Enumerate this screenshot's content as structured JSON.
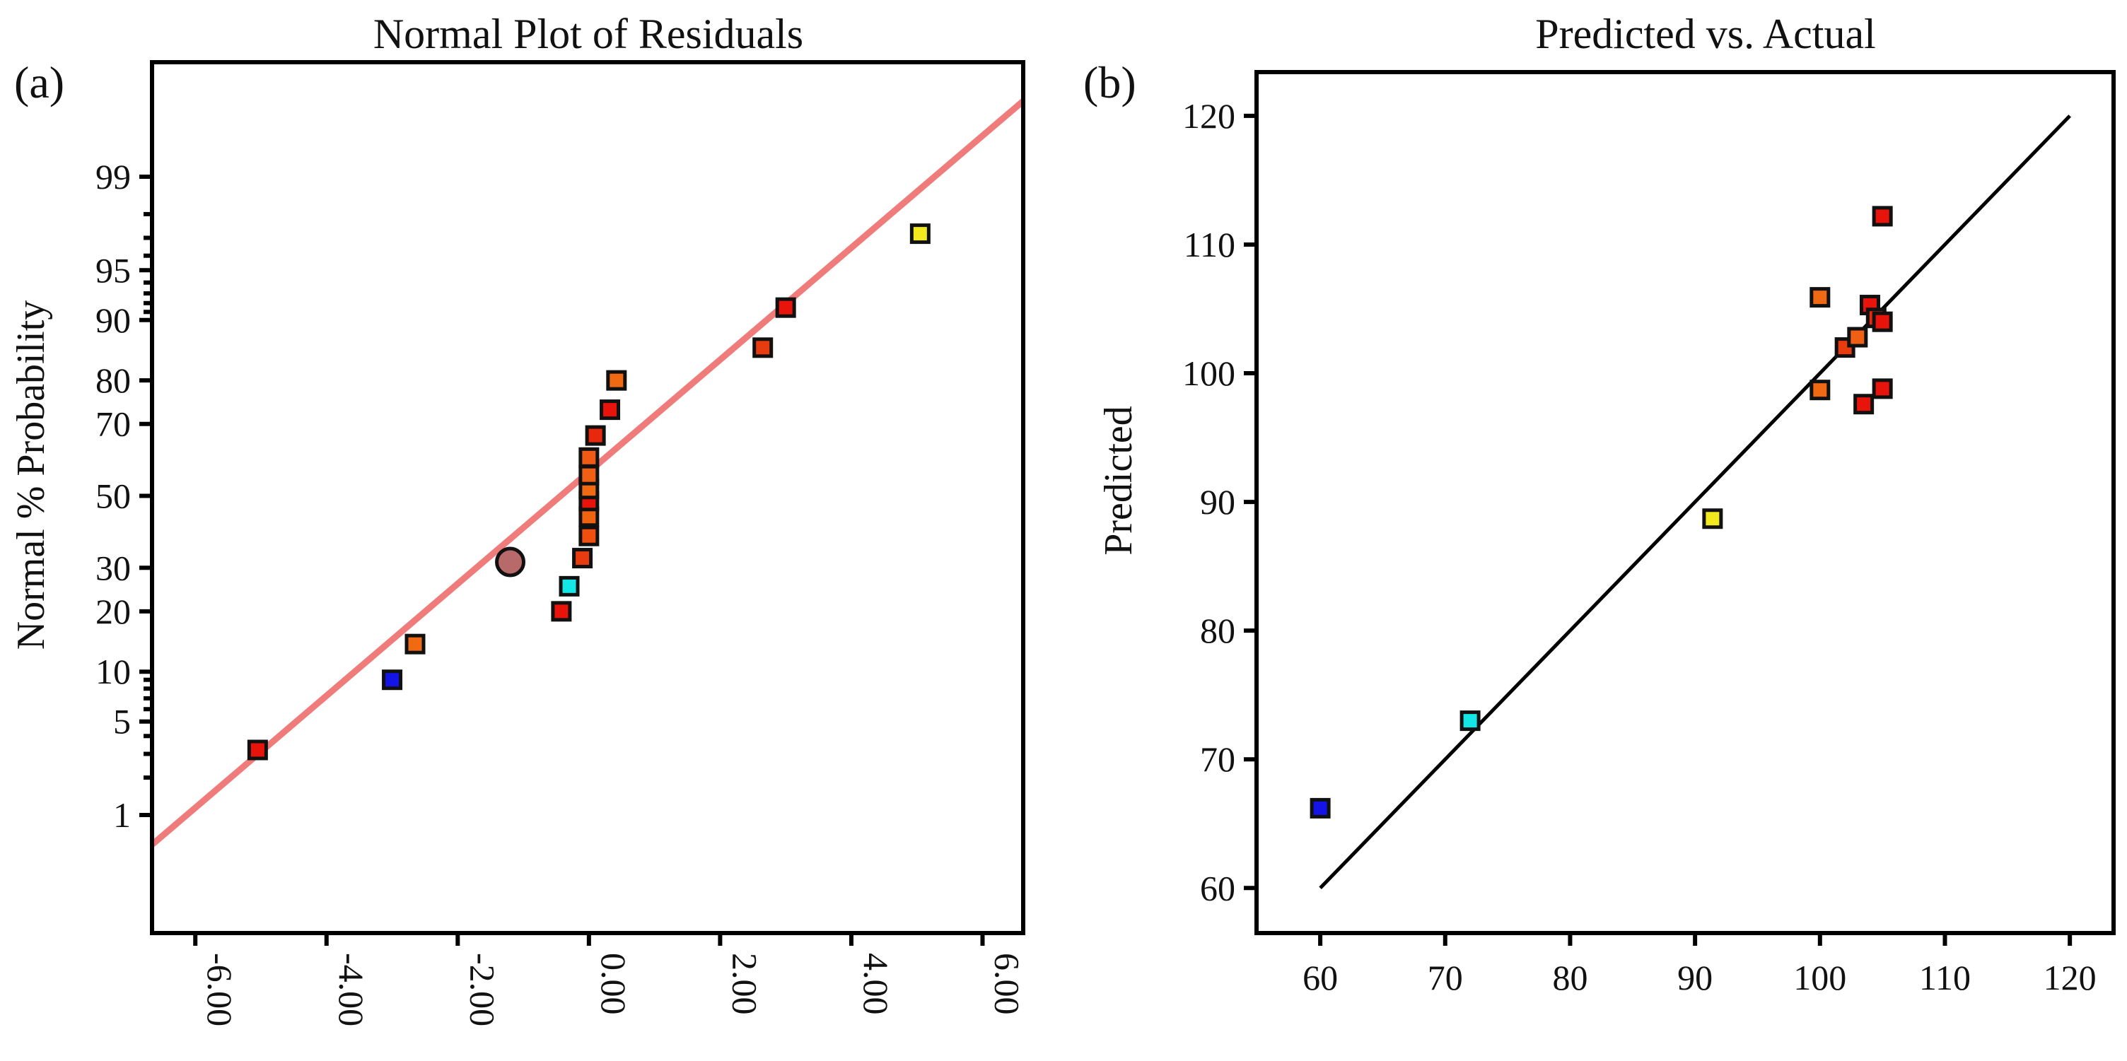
{
  "chart_data": [
    {
      "type": "scatter",
      "panel": "(a)",
      "title": "Normal Plot of Residuals",
      "xlabel": "",
      "ylabel": "Normal % Probability",
      "xlim": [
        -6.66,
        6.62
      ],
      "xticks": [
        "-6.00",
        "-4.00",
        "-2.00",
        "0.00",
        "2.00",
        "4.00",
        "6.00"
      ],
      "xtick_values": [
        -6,
        -4,
        -2,
        0,
        2,
        4,
        6
      ],
      "yticks": [
        "1",
        "5",
        "10",
        "20",
        "30",
        "50",
        "70",
        "80",
        "90",
        "95",
        "99"
      ],
      "ytick_values": [
        1,
        5,
        10,
        20,
        30,
        50,
        70,
        80,
        90,
        95,
        99
      ],
      "fit_line": {
        "color": "#f07b7b",
        "x": [
          -6.66,
          6.62
        ],
        "y": [
          0.55,
          99.8
        ]
      },
      "highlight": {
        "x": -1.2,
        "y": 31.5,
        "color": "#b86a6a"
      },
      "points": [
        {
          "x": -5.05,
          "y": 3.2,
          "color": "#e8140c"
        },
        {
          "x": -3.0,
          "y": 9.0,
          "color": "#1414e6"
        },
        {
          "x": -2.65,
          "y": 14.0,
          "color": "#f06a14"
        },
        {
          "x": -0.42,
          "y": 20.0,
          "color": "#e8140c"
        },
        {
          "x": -0.3,
          "y": 25.5,
          "color": "#14e6e6"
        },
        {
          "x": -0.1,
          "y": 32.5,
          "color": "#e83c10"
        },
        {
          "x": 0.0,
          "y": 38.5,
          "color": "#f0500f"
        },
        {
          "x": 0.0,
          "y": 44.0,
          "color": "#f0640f"
        },
        {
          "x": 0.0,
          "y": 48.5,
          "color": "#e8140c"
        },
        {
          "x": 0.0,
          "y": 52.0,
          "color": "#f06a14"
        },
        {
          "x": 0.0,
          "y": 56.0,
          "color": "#f06014"
        },
        {
          "x": 0.0,
          "y": 61.0,
          "color": "#f05a14"
        },
        {
          "x": 0.1,
          "y": 67.0,
          "color": "#e8280c"
        },
        {
          "x": 0.32,
          "y": 73.5,
          "color": "#e8140c"
        },
        {
          "x": 0.42,
          "y": 80.0,
          "color": "#f06a14"
        },
        {
          "x": 2.65,
          "y": 86.0,
          "color": "#e83c10"
        },
        {
          "x": 3.0,
          "y": 91.5,
          "color": "#e8140c"
        },
        {
          "x": 5.05,
          "y": 97.2,
          "color": "#f2ea1e"
        }
      ]
    },
    {
      "type": "scatter",
      "panel": "(b)",
      "title": "Predicted vs. Actual",
      "xlabel": "",
      "ylabel": "Predicted",
      "xlim": [
        54.9,
        123.5
      ],
      "ylim": [
        56.5,
        123.4
      ],
      "xticks": [
        "60",
        "70",
        "80",
        "90",
        "100",
        "110",
        "120"
      ],
      "xtick_values": [
        60,
        70,
        80,
        90,
        100,
        110,
        120
      ],
      "yticks": [
        "60",
        "70",
        "80",
        "90",
        "100",
        "110",
        "120"
      ],
      "ytick_values": [
        60,
        70,
        80,
        90,
        100,
        110,
        120
      ],
      "fit_line": {
        "color": "#000000",
        "x": [
          60,
          120
        ],
        "y": [
          60,
          120
        ]
      },
      "points": [
        {
          "x": 60.0,
          "y": 66.2,
          "color": "#1414e6"
        },
        {
          "x": 72.0,
          "y": 73.0,
          "color": "#14e6e6"
        },
        {
          "x": 91.4,
          "y": 88.7,
          "color": "#f2ea1e"
        },
        {
          "x": 100.0,
          "y": 105.9,
          "color": "#f06a14"
        },
        {
          "x": 100.0,
          "y": 98.7,
          "color": "#f06a14"
        },
        {
          "x": 102.0,
          "y": 102.0,
          "color": "#e83c10"
        },
        {
          "x": 103.0,
          "y": 102.8,
          "color": "#f06014"
        },
        {
          "x": 103.5,
          "y": 97.6,
          "color": "#e8140c"
        },
        {
          "x": 104.0,
          "y": 105.3,
          "color": "#e8140c"
        },
        {
          "x": 104.5,
          "y": 104.3,
          "color": "#e82a0c"
        },
        {
          "x": 105.0,
          "y": 104.0,
          "color": "#e8140c"
        },
        {
          "x": 105.0,
          "y": 98.8,
          "color": "#e8140c"
        },
        {
          "x": 105.0,
          "y": 112.2,
          "color": "#e8140c"
        }
      ]
    }
  ]
}
